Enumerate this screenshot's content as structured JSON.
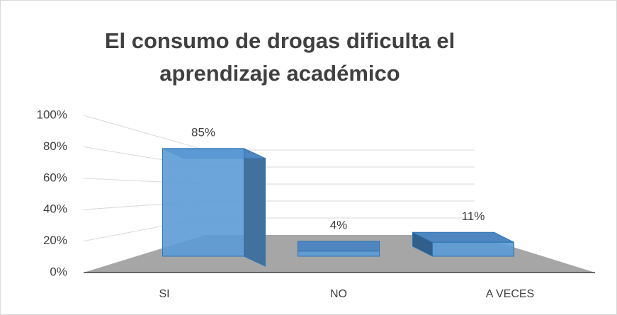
{
  "chart_data": {
    "type": "bar",
    "title": [
      "El consumo de drogas dificulta el",
      "aprendizaje académico"
    ],
    "categories": [
      "SI",
      "NO",
      "A VECES"
    ],
    "values": [
      85,
      4,
      11
    ],
    "value_labels": [
      "85%",
      "4%",
      "11%"
    ],
    "color": "#5b9bd5",
    "ylim": [
      0,
      100
    ],
    "yticks": [
      {
        "value": 0,
        "label": "0%"
      },
      {
        "value": 20,
        "label": "20%"
      },
      {
        "value": 40,
        "label": "40%"
      },
      {
        "value": 60,
        "label": "60%"
      },
      {
        "value": 80,
        "label": "80%"
      },
      {
        "value": 100,
        "label": "100%"
      }
    ],
    "grid": true
  }
}
